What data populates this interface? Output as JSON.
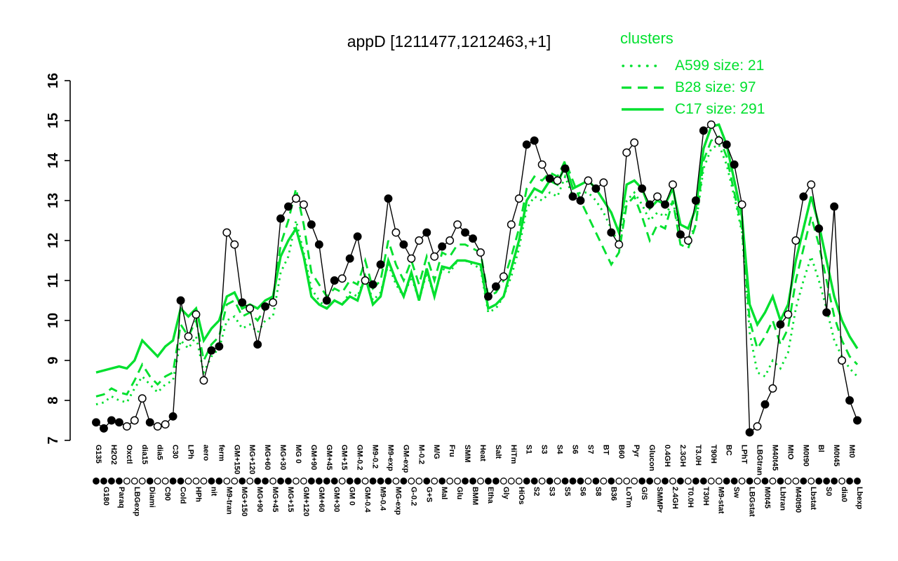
{
  "title": "appD [1211477,1212463,+1]",
  "legend": {
    "title": "clusters",
    "items": [
      {
        "label": "A599 size: 21",
        "style": "dotted"
      },
      {
        "label": "B28 size: 97",
        "style": "dashed"
      },
      {
        "label": "C17 size: 291",
        "style": "solid"
      }
    ]
  },
  "colors": {
    "cluster_green": "#00e02e",
    "profile_black": "#000000",
    "background": "#ffffff"
  },
  "chart_data": {
    "type": "line",
    "title": "appD [1211477,1212463,+1]",
    "xlabel": "",
    "ylabel": "",
    "ylim": [
      7,
      16
    ],
    "yticks": [
      7,
      8,
      9,
      10,
      11,
      12,
      13,
      14,
      15,
      16
    ],
    "grid": false,
    "legend_position": "top-right",
    "categories": [
      "G135",
      "G180",
      "H2O2",
      "Paraq",
      "Oxctl",
      "LBGexp",
      "dia15",
      "Diami",
      "dia5",
      "C90",
      "C30",
      "Cold",
      "LPh",
      "HPh",
      "aero",
      "nit",
      "ferm",
      "M9-tran",
      "GM+150",
      "MG+150",
      "MG+120",
      "MG+90",
      "MG+60",
      "MG+45",
      "MG+30",
      "MG+15",
      "MG 0",
      "GM+120",
      "GM+90",
      "GM+60",
      "GM+45",
      "GM+30",
      "GM+15",
      "GM 0",
      "GM-0.2",
      "GM-0.4",
      "M9-0.2",
      "M9-0.4",
      "M9-exp",
      "MG-exp",
      "GM-exp",
      "G-0.2",
      "M-0.2",
      "G+S",
      "M/G",
      "Mal",
      "Fru",
      "Glu",
      "SMM",
      "BMM",
      "Heat",
      "Etha",
      "Salt",
      "Gly",
      "HiTm",
      "HiOs",
      "S1",
      "S2",
      "S3",
      "S3",
      "S4",
      "S5",
      "S6",
      "S6",
      "S7",
      "S8",
      "BT",
      "B36",
      "B60",
      "LoTm",
      "Pyr",
      "G/S",
      "Glucon",
      "SMMPr",
      "0.4GH",
      "2.4GH",
      "2.3GH",
      "T0.0H",
      "T3.0H",
      "T30H",
      "T90H",
      "M9-stat",
      "BC",
      "Sw",
      "LPhT",
      "LBGstat",
      "LBGtran",
      "M0t45",
      "M40t45",
      "Lbtran",
      "MtO",
      "M40t90",
      "M0t90",
      "Lbstat",
      "Bl",
      "S0",
      "M0t45",
      "dia0",
      "Mt0",
      "Lbexp"
    ],
    "series": [
      {
        "name": "appD",
        "role": "gene-profile",
        "color": "#000000",
        "marker": "circle",
        "values": [
          7.45,
          7.3,
          7.5,
          7.45,
          7.35,
          7.5,
          8.05,
          7.45,
          7.35,
          7.4,
          7.6,
          10.5,
          9.6,
          10.15,
          8.5,
          9.25,
          9.35,
          12.2,
          11.9,
          10.45,
          10.3,
          9.4,
          10.35,
          10.45,
          12.55,
          12.85,
          13.05,
          12.9,
          12.4,
          11.9,
          10.5,
          11.0,
          11.05,
          11.55,
          12.1,
          11.0,
          10.9,
          11.4,
          13.05,
          12.2,
          11.9,
          11.55,
          12.0,
          12.2,
          11.6,
          11.85,
          12.0,
          12.4,
          12.2,
          12.05,
          11.7,
          10.6,
          10.85,
          11.1,
          12.4,
          13.05,
          14.4,
          14.5,
          13.9,
          13.55,
          13.5,
          13.8,
          13.1,
          13.0,
          13.5,
          13.3,
          13.45,
          12.2,
          11.9,
          14.2,
          14.45,
          13.3,
          12.9,
          13.1,
          12.9,
          13.4,
          12.15,
          12.0,
          13.0,
          14.75,
          14.9,
          14.5,
          14.4,
          13.9,
          12.9,
          7.2,
          7.35,
          7.9,
          8.3,
          9.9,
          10.15,
          12.0,
          13.1,
          13.4,
          12.3,
          10.2,
          12.85,
          9.0,
          8.0,
          7.5
        ],
        "marker_open": [
          false,
          false,
          false,
          false,
          true,
          true,
          true,
          false,
          true,
          true,
          false,
          false,
          true,
          true,
          true,
          false,
          false,
          true,
          true,
          false,
          true,
          false,
          false,
          true,
          false,
          false,
          true,
          true,
          false,
          false,
          false,
          false,
          true,
          false,
          false,
          true,
          false,
          false,
          false,
          true,
          false,
          true,
          true,
          false,
          true,
          false,
          true,
          true,
          false,
          false,
          true,
          false,
          false,
          true,
          true,
          true,
          false,
          false,
          true,
          false,
          true,
          false,
          false,
          false,
          true,
          false,
          true,
          false,
          true,
          true,
          true,
          false,
          false,
          true,
          false,
          true,
          false,
          true,
          false,
          false,
          true,
          true,
          false,
          false,
          true,
          false,
          true,
          false,
          true,
          false,
          true,
          true,
          false,
          true,
          false,
          false,
          false,
          true,
          false,
          false
        ]
      },
      {
        "name": "A599",
        "size": 21,
        "style": "dotted",
        "color": "#00e02e",
        "values": [
          7.9,
          7.95,
          8.1,
          8.0,
          7.95,
          8.3,
          8.6,
          8.4,
          8.2,
          8.4,
          8.5,
          9.5,
          9.3,
          9.6,
          8.7,
          9.1,
          9.3,
          10.0,
          10.1,
          9.8,
          9.9,
          9.7,
          10.0,
          10.1,
          11.2,
          11.6,
          12.5,
          11.7,
          10.8,
          10.5,
          10.3,
          10.5,
          10.4,
          10.7,
          10.6,
          11.1,
          10.5,
          10.7,
          11.4,
          10.9,
          10.6,
          11.1,
          10.5,
          11.2,
          10.6,
          11.3,
          11.2,
          11.5,
          11.5,
          11.4,
          11.3,
          10.2,
          10.3,
          10.6,
          11.1,
          11.8,
          12.8,
          13.1,
          13.0,
          13.2,
          13.1,
          13.6,
          13.1,
          13.2,
          13.2,
          13.0,
          12.7,
          12.3,
          11.9,
          13.0,
          13.2,
          12.9,
          12.5,
          12.7,
          12.6,
          13.0,
          12.1,
          12.0,
          12.4,
          13.8,
          14.3,
          14.4,
          13.9,
          13.1,
          12.2,
          9.7,
          8.7,
          8.6,
          9.0,
          8.8,
          9.2,
          10.3,
          11.0,
          11.6,
          11.0,
          10.3,
          9.5,
          9.1,
          8.8,
          8.6
        ]
      },
      {
        "name": "B28",
        "size": 97,
        "style": "dashed",
        "color": "#00e02e",
        "values": [
          8.1,
          8.15,
          8.3,
          8.2,
          8.15,
          8.5,
          8.9,
          8.6,
          8.4,
          8.6,
          8.7,
          9.9,
          9.6,
          10.0,
          9.0,
          9.4,
          9.6,
          10.4,
          10.5,
          10.1,
          10.2,
          10.0,
          10.3,
          10.5,
          11.9,
          12.5,
          13.3,
          12.4,
          11.2,
          10.9,
          10.6,
          10.8,
          10.7,
          11.0,
          10.9,
          11.5,
          10.8,
          11.0,
          12.0,
          11.4,
          11.0,
          11.5,
          10.9,
          11.6,
          11.0,
          11.7,
          11.6,
          11.9,
          11.9,
          11.8,
          11.7,
          10.6,
          10.7,
          11.0,
          11.6,
          12.3,
          13.3,
          13.6,
          13.5,
          13.7,
          13.6,
          14.0,
          13.5,
          13.0,
          12.6,
          12.2,
          11.8,
          11.4,
          11.7,
          12.9,
          13.1,
          12.6,
          12.0,
          12.4,
          12.3,
          13.0,
          11.9,
          11.8,
          12.4,
          14.0,
          14.5,
          14.6,
          14.1,
          13.2,
          12.3,
          10.0,
          9.3,
          9.6,
          10.0,
          9.4,
          9.8,
          11.0,
          11.8,
          12.6,
          11.9,
          11.0,
          10.1,
          9.5,
          9.1,
          8.9
        ]
      },
      {
        "name": "C17",
        "size": 291,
        "style": "solid",
        "color": "#00e02e",
        "values": [
          8.7,
          8.75,
          8.8,
          8.85,
          8.8,
          9.0,
          9.5,
          9.3,
          9.1,
          9.35,
          9.5,
          10.3,
          10.1,
          10.3,
          9.5,
          9.8,
          10.0,
          10.6,
          10.7,
          10.3,
          10.4,
          10.3,
          10.5,
          10.6,
          11.6,
          12.0,
          12.3,
          11.6,
          10.6,
          10.4,
          10.3,
          10.5,
          10.4,
          10.6,
          10.5,
          11.1,
          10.4,
          10.6,
          11.5,
          11.0,
          10.6,
          11.2,
          10.5,
          11.3,
          10.6,
          11.35,
          11.3,
          11.5,
          11.5,
          11.45,
          11.4,
          10.3,
          10.4,
          10.6,
          11.3,
          12.0,
          13.0,
          13.3,
          13.2,
          13.5,
          13.4,
          13.9,
          13.3,
          13.4,
          13.5,
          13.3,
          13.0,
          12.7,
          12.2,
          13.4,
          13.5,
          13.3,
          12.8,
          13.0,
          12.9,
          13.3,
          12.4,
          12.3,
          12.8,
          14.3,
          14.85,
          14.9,
          14.4,
          13.5,
          12.6,
          10.4,
          9.9,
          10.2,
          10.6,
          10.0,
          10.4,
          11.5,
          12.3,
          13.1,
          12.4,
          11.5,
          10.6,
          10.0,
          9.6,
          9.3
        ]
      }
    ]
  }
}
